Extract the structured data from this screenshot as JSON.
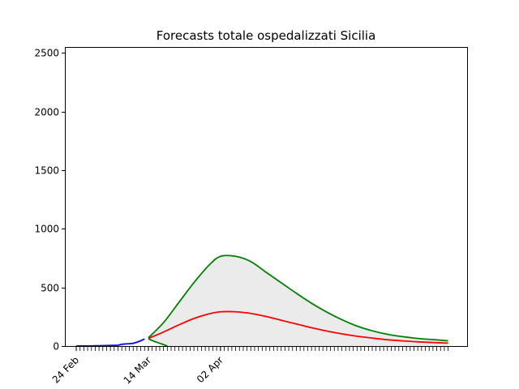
{
  "chart_data": {
    "type": "line",
    "title": "Forecasts totale ospedalizzati Sicilia",
    "xlabel": "",
    "ylabel": "",
    "x_start": "2020-02-21",
    "x_end": "2020-06-06",
    "xlim": [
      "2020-02-21",
      "2020-06-06"
    ],
    "ylim": [
      0,
      2550
    ],
    "y_ticks": [
      0,
      500,
      1000,
      1500,
      2000,
      2500
    ],
    "x_tick_labels": [
      {
        "date": "2020-02-24",
        "label": "24 Feb"
      },
      {
        "date": "2020-03-14",
        "label": "14 Mar"
      },
      {
        "date": "2020-04-02",
        "label": "02 Apr"
      }
    ],
    "grid": false,
    "legend": "none",
    "series": [
      {
        "role": "observed",
        "color": "#0000ff",
        "x": [
          "2020-02-24",
          "2020-02-25",
          "2020-02-26",
          "2020-02-27",
          "2020-02-28",
          "2020-02-29",
          "2020-03-01",
          "2020-03-02",
          "2020-03-03",
          "2020-03-04",
          "2020-03-05",
          "2020-03-06",
          "2020-03-07",
          "2020-03-08",
          "2020-03-09",
          "2020-03-10",
          "2020-03-11",
          "2020-03-12",
          "2020-03-13"
        ],
        "values": [
          1,
          1,
          1,
          1,
          1,
          2,
          2,
          3,
          4,
          5,
          6,
          7,
          15,
          18,
          20,
          23,
          33,
          45,
          60
        ]
      },
      {
        "role": "forecast-upper",
        "color": "#008000",
        "x": [
          "2020-03-14",
          "2020-03-18",
          "2020-03-22",
          "2020-03-26",
          "2020-03-30",
          "2020-04-02",
          "2020-04-06",
          "2020-04-10",
          "2020-04-14",
          "2020-04-18",
          "2020-04-22",
          "2020-04-26",
          "2020-04-30",
          "2020-05-04",
          "2020-05-08",
          "2020-05-12",
          "2020-05-16",
          "2020-05-20",
          "2020-05-24",
          "2020-05-28",
          "2020-06-01"
        ],
        "values": [
          70,
          200,
          370,
          540,
          690,
          765,
          765,
          720,
          630,
          540,
          450,
          365,
          290,
          225,
          170,
          130,
          100,
          80,
          65,
          55,
          45
        ]
      },
      {
        "role": "forecast-central",
        "color": "#ff0000",
        "x": [
          "2020-03-14",
          "2020-03-18",
          "2020-03-22",
          "2020-03-26",
          "2020-03-30",
          "2020-04-02",
          "2020-04-06",
          "2020-04-10",
          "2020-04-14",
          "2020-04-18",
          "2020-04-22",
          "2020-04-26",
          "2020-04-30",
          "2020-05-04",
          "2020-05-08",
          "2020-05-12",
          "2020-05-16",
          "2020-05-20",
          "2020-05-24",
          "2020-05-28",
          "2020-06-01"
        ],
        "values": [
          65,
          120,
          180,
          235,
          275,
          292,
          292,
          278,
          252,
          220,
          188,
          156,
          128,
          104,
          84,
          68,
          54,
          44,
          36,
          30,
          25
        ]
      },
      {
        "role": "forecast-lower",
        "color": "#008000",
        "x": [
          "2020-03-14",
          "2020-03-16",
          "2020-03-18",
          "2020-03-19"
        ],
        "values": [
          60,
          35,
          12,
          0
        ]
      }
    ],
    "band": {
      "color": "#ebebeb",
      "between": [
        "forecast-lower",
        "forecast-upper"
      ]
    }
  }
}
